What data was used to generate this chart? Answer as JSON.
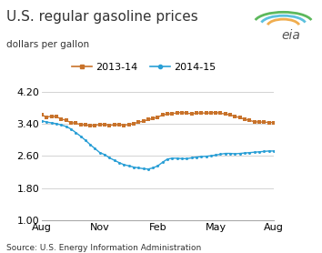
{
  "title": "U.S. regular gasoline prices",
  "ylabel": "dollars per gallon",
  "source": "Source: U.S. Energy Information Administration",
  "ylim": [
    1.0,
    4.4
  ],
  "yticks": [
    1.0,
    1.8,
    2.6,
    3.4,
    4.2
  ],
  "xtick_labels": [
    "Aug",
    "Nov",
    "Feb",
    "May",
    "Aug"
  ],
  "xtick_positions": [
    0,
    0.25,
    0.5,
    0.75,
    1.0
  ],
  "legend_labels": [
    "2013-14",
    "2014-15"
  ],
  "color_2013": "#c8722a",
  "color_2014": "#2a9fd6",
  "series_2013": [
    3.62,
    3.56,
    3.59,
    3.57,
    3.52,
    3.48,
    3.43,
    3.41,
    3.38,
    3.37,
    3.35,
    3.36,
    3.38,
    3.38,
    3.36,
    3.37,
    3.38,
    3.36,
    3.38,
    3.4,
    3.44,
    3.46,
    3.5,
    3.53,
    3.56,
    3.62,
    3.64,
    3.65,
    3.67,
    3.68,
    3.66,
    3.65,
    3.66,
    3.67,
    3.66,
    3.67,
    3.68,
    3.66,
    3.64,
    3.62,
    3.58,
    3.55,
    3.51,
    3.48,
    3.45,
    3.44,
    3.44,
    3.43,
    3.43
  ],
  "series_2014": [
    3.47,
    3.44,
    3.42,
    3.4,
    3.37,
    3.33,
    3.27,
    3.18,
    3.09,
    2.99,
    2.88,
    2.78,
    2.68,
    2.63,
    2.55,
    2.49,
    2.43,
    2.38,
    2.35,
    2.32,
    2.3,
    2.28,
    2.27,
    2.3,
    2.35,
    2.44,
    2.52,
    2.54,
    2.54,
    2.53,
    2.53,
    2.55,
    2.57,
    2.58,
    2.59,
    2.6,
    2.62,
    2.64,
    2.66,
    2.66,
    2.65,
    2.66,
    2.67,
    2.68,
    2.69,
    2.7,
    2.71,
    2.72,
    2.72
  ],
  "background_color": "#ffffff",
  "grid_color": "#cccccc",
  "title_fontsize": 11,
  "label_fontsize": 7.5,
  "tick_fontsize": 8,
  "legend_fontsize": 8,
  "source_fontsize": 6.5
}
